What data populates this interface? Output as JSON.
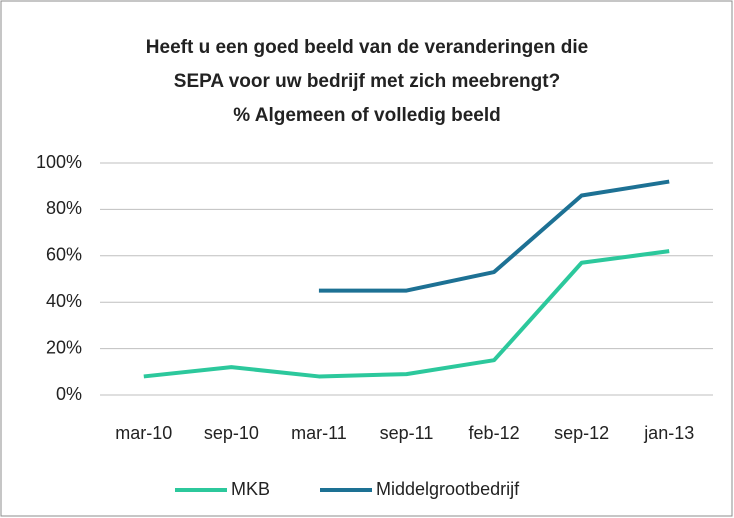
{
  "chart_data": {
    "type": "line",
    "title": [
      "Heeft u een goed beeld van de veranderingen die",
      "SEPA voor uw bedrijf met zich meebrengt?",
      "% Algemeen of volledig beeld"
    ],
    "categories": [
      "mar-10",
      "sep-10",
      "mar-11",
      "sep-11",
      "feb-12",
      "sep-12",
      "jan-13"
    ],
    "series": [
      {
        "name": "MKB",
        "color": "#2cc89c",
        "values": [
          8,
          12,
          8,
          9,
          15,
          57,
          62
        ]
      },
      {
        "name": "Middelgrootbedrijf",
        "color": "#1d7194",
        "values": [
          null,
          null,
          45,
          45,
          53,
          86,
          92
        ]
      }
    ],
    "ylim": [
      0,
      100
    ],
    "yticks": [
      {
        "value": 0,
        "label": "0%"
      },
      {
        "value": 20,
        "label": "20%"
      },
      {
        "value": 40,
        "label": "40%"
      },
      {
        "value": 60,
        "label": "60%"
      },
      {
        "value": 80,
        "label": "80%"
      },
      {
        "value": 100,
        "label": "100%"
      }
    ],
    "grid": true,
    "legend": "bottom"
  }
}
